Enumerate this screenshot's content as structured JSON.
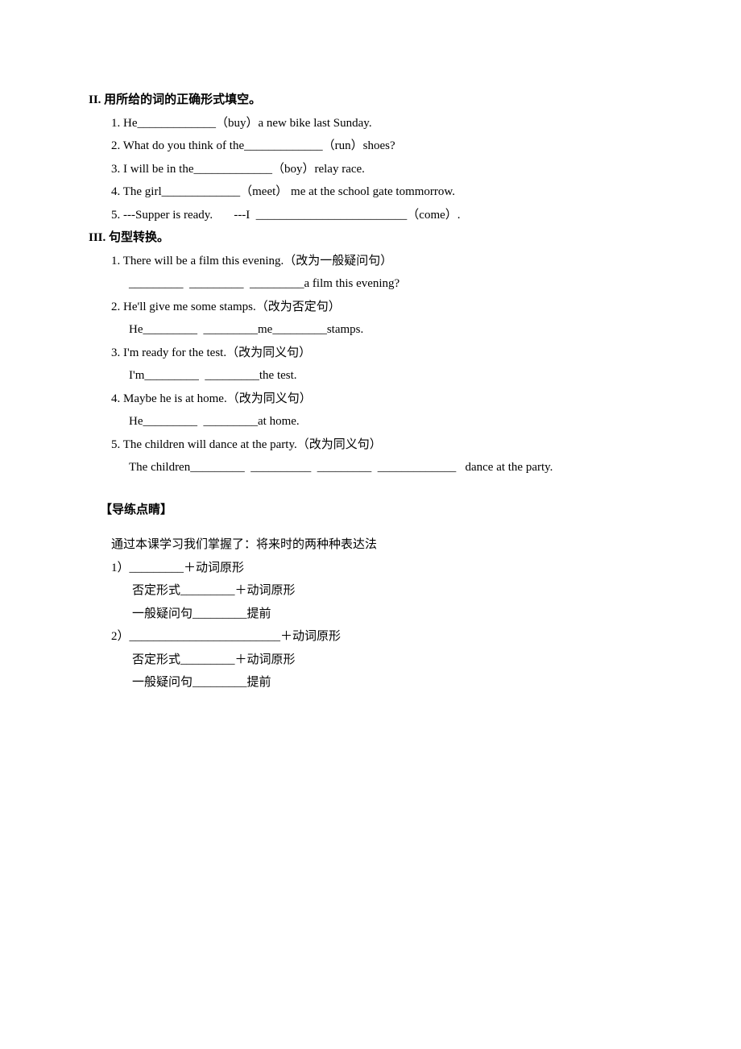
{
  "section2": {
    "heading": "II. 用所给的词的正确形式填空。",
    "items": [
      "1. He_____________（buy）a new bike last Sunday.",
      "2. What do you think of the_____________（run）shoes?",
      "3. I will be in the_____________（boy）relay race.",
      "4. The girl_____________（meet） me at the school gate tommorrow.",
      "5. ---Supper is ready.       ---I  _________________________（come）."
    ]
  },
  "section3": {
    "heading": "III. 句型转换。",
    "items": [
      {
        "q": "1. There will be a film this evening.（改为一般疑问句）",
        "a": "_________  _________  _________a film this evening?"
      },
      {
        "q": "2. He'll give me some stamps.（改为否定句）",
        "a": "He_________  _________me_________stamps."
      },
      {
        "q": "3. I'm ready for the test.（改为同义句）",
        "a": "I'm_________  _________the test."
      },
      {
        "q": "4. Maybe he is at home.（改为同义句）",
        "a": "He_________  _________at home."
      },
      {
        "q": "5. The children will dance at the party.（改为同义句）",
        "a": "The children_________  __________  _________  _____________   dance at the party."
      }
    ]
  },
  "summary": {
    "heading": "【导练点睛】",
    "intro": "通过本课学习我们掌握了：将来时的两种种表达法",
    "part1": {
      "l1": "1）_________＋动词原形",
      "l2": "否定形式_________＋动词原形",
      "l3": "一般疑问句_________提前"
    },
    "part2": {
      "l1": "2）_________________________＋动词原形",
      "l2": "否定形式_________＋动词原形",
      "l3": "一般疑问句_________提前"
    }
  }
}
